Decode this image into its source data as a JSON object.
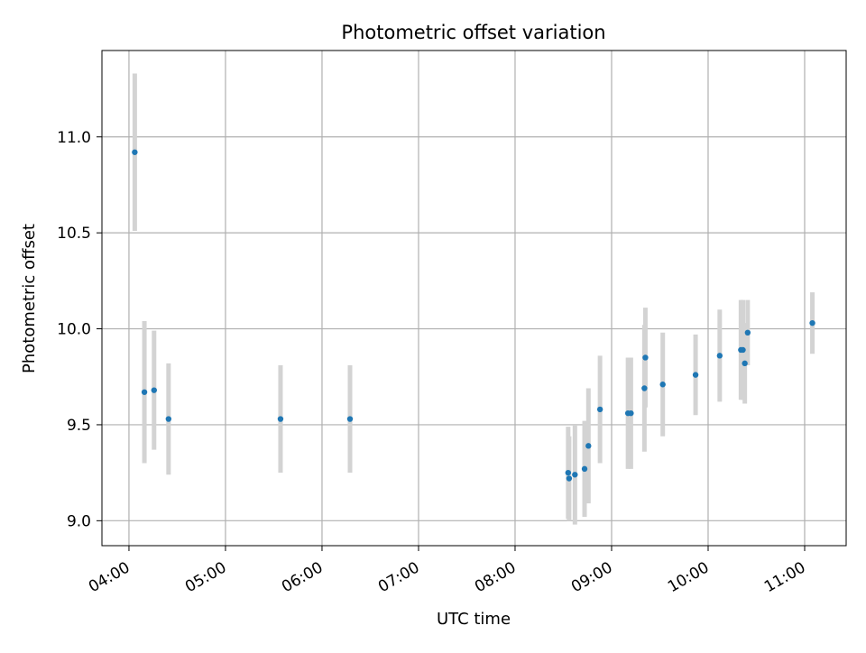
{
  "chart_data": {
    "type": "scatter",
    "title": "Photometric offset variation",
    "xlabel": "UTC time",
    "ylabel": "Photometric offset",
    "x_unit": "UTC time (hours)",
    "xlim": [
      3.72,
      11.43
    ],
    "ylim": [
      8.87,
      11.45
    ],
    "x_ticks": [
      {
        "value": 4,
        "label": "04:00"
      },
      {
        "value": 5,
        "label": "05:00"
      },
      {
        "value": 6,
        "label": "06:00"
      },
      {
        "value": 7,
        "label": "07:00"
      },
      {
        "value": 8,
        "label": "08:00"
      },
      {
        "value": 9,
        "label": "09:00"
      },
      {
        "value": 10,
        "label": "10:00"
      },
      {
        "value": 11,
        "label": "11:00"
      }
    ],
    "y_ticks": [
      {
        "value": 9.0,
        "label": "9.0"
      },
      {
        "value": 9.5,
        "label": "9.5"
      },
      {
        "value": 10.0,
        "label": "10.0"
      },
      {
        "value": 10.5,
        "label": "10.5"
      },
      {
        "value": 11.0,
        "label": "11.0"
      }
    ],
    "grid": true,
    "colors": {
      "points": "#1f77b4",
      "errorbars": "#d3d3d3",
      "grid": "#b0b0b0"
    },
    "points": [
      {
        "x": 4.06,
        "y": 10.92,
        "err": 0.41
      },
      {
        "x": 4.16,
        "y": 9.67,
        "err": 0.37
      },
      {
        "x": 4.26,
        "y": 9.68,
        "err": 0.31
      },
      {
        "x": 4.41,
        "y": 9.53,
        "err": 0.29
      },
      {
        "x": 5.57,
        "y": 9.53,
        "err": 0.28
      },
      {
        "x": 6.29,
        "y": 9.53,
        "err": 0.28
      },
      {
        "x": 8.55,
        "y": 9.25,
        "err": 0.24
      },
      {
        "x": 8.56,
        "y": 9.22,
        "err": 0.22
      },
      {
        "x": 8.62,
        "y": 9.24,
        "err": 0.26
      },
      {
        "x": 8.72,
        "y": 9.27,
        "err": 0.25
      },
      {
        "x": 8.76,
        "y": 9.39,
        "err": 0.3
      },
      {
        "x": 8.88,
        "y": 9.58,
        "err": 0.28
      },
      {
        "x": 9.17,
        "y": 9.56,
        "err": 0.29
      },
      {
        "x": 9.2,
        "y": 9.56,
        "err": 0.29
      },
      {
        "x": 9.34,
        "y": 9.69,
        "err": 0.33
      },
      {
        "x": 9.35,
        "y": 9.85,
        "err": 0.26
      },
      {
        "x": 9.53,
        "y": 9.71,
        "err": 0.27
      },
      {
        "x": 9.87,
        "y": 9.76,
        "err": 0.21
      },
      {
        "x": 10.12,
        "y": 9.86,
        "err": 0.24
      },
      {
        "x": 10.34,
        "y": 9.89,
        "err": 0.26
      },
      {
        "x": 10.36,
        "y": 9.89,
        "err": 0.26
      },
      {
        "x": 10.38,
        "y": 9.82,
        "err": 0.21
      },
      {
        "x": 10.41,
        "y": 9.98,
        "err": 0.17
      },
      {
        "x": 11.08,
        "y": 10.03,
        "err": 0.16
      }
    ]
  }
}
